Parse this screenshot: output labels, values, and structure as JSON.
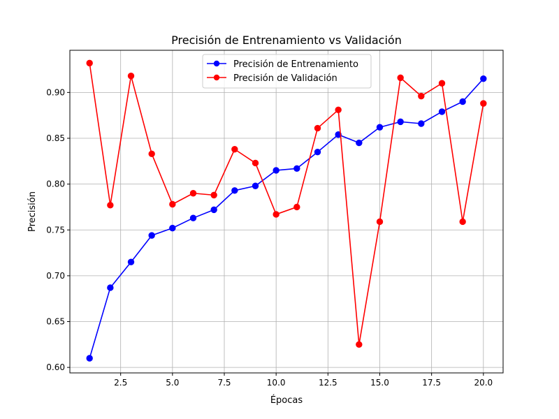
{
  "chart_data": {
    "type": "line",
    "title": "Precisión de Entrenamiento vs Validación",
    "xlabel": "Épocas",
    "ylabel": "Precisión",
    "xlim": [
      0.05,
      20.95
    ],
    "ylim": [
      0.594,
      0.946
    ],
    "x_ticks": [
      2.5,
      5.0,
      7.5,
      10.0,
      12.5,
      15.0,
      17.5,
      20.0
    ],
    "x_tick_labels": [
      "2.5",
      "5.0",
      "7.5",
      "10.0",
      "12.5",
      "15.0",
      "17.5",
      "20.0"
    ],
    "y_ticks": [
      0.6,
      0.65,
      0.7,
      0.75,
      0.8,
      0.85,
      0.9
    ],
    "y_tick_labels": [
      "0.60",
      "0.65",
      "0.70",
      "0.75",
      "0.80",
      "0.85",
      "0.90"
    ],
    "grid": true,
    "legend_position": "top-center",
    "x": [
      1,
      2,
      3,
      4,
      5,
      6,
      7,
      8,
      9,
      10,
      11,
      12,
      13,
      14,
      15,
      16,
      17,
      18,
      19,
      20
    ],
    "series": [
      {
        "name": "Precisión de Entrenamiento",
        "color": "#0000ff",
        "marker": "circle",
        "values": [
          0.61,
          0.687,
          0.715,
          0.744,
          0.752,
          0.763,
          0.772,
          0.793,
          0.798,
          0.815,
          0.817,
          0.835,
          0.854,
          0.845,
          0.862,
          0.868,
          0.866,
          0.879,
          0.89,
          0.915
        ]
      },
      {
        "name": "Precisión de Validación",
        "color": "#ff0000",
        "marker": "circle",
        "values": [
          0.932,
          0.777,
          0.918,
          0.833,
          0.778,
          0.79,
          0.788,
          0.838,
          0.823,
          0.767,
          0.775,
          0.861,
          0.881,
          0.625,
          0.759,
          0.916,
          0.896,
          0.91,
          0.759,
          0.888
        ]
      }
    ]
  }
}
